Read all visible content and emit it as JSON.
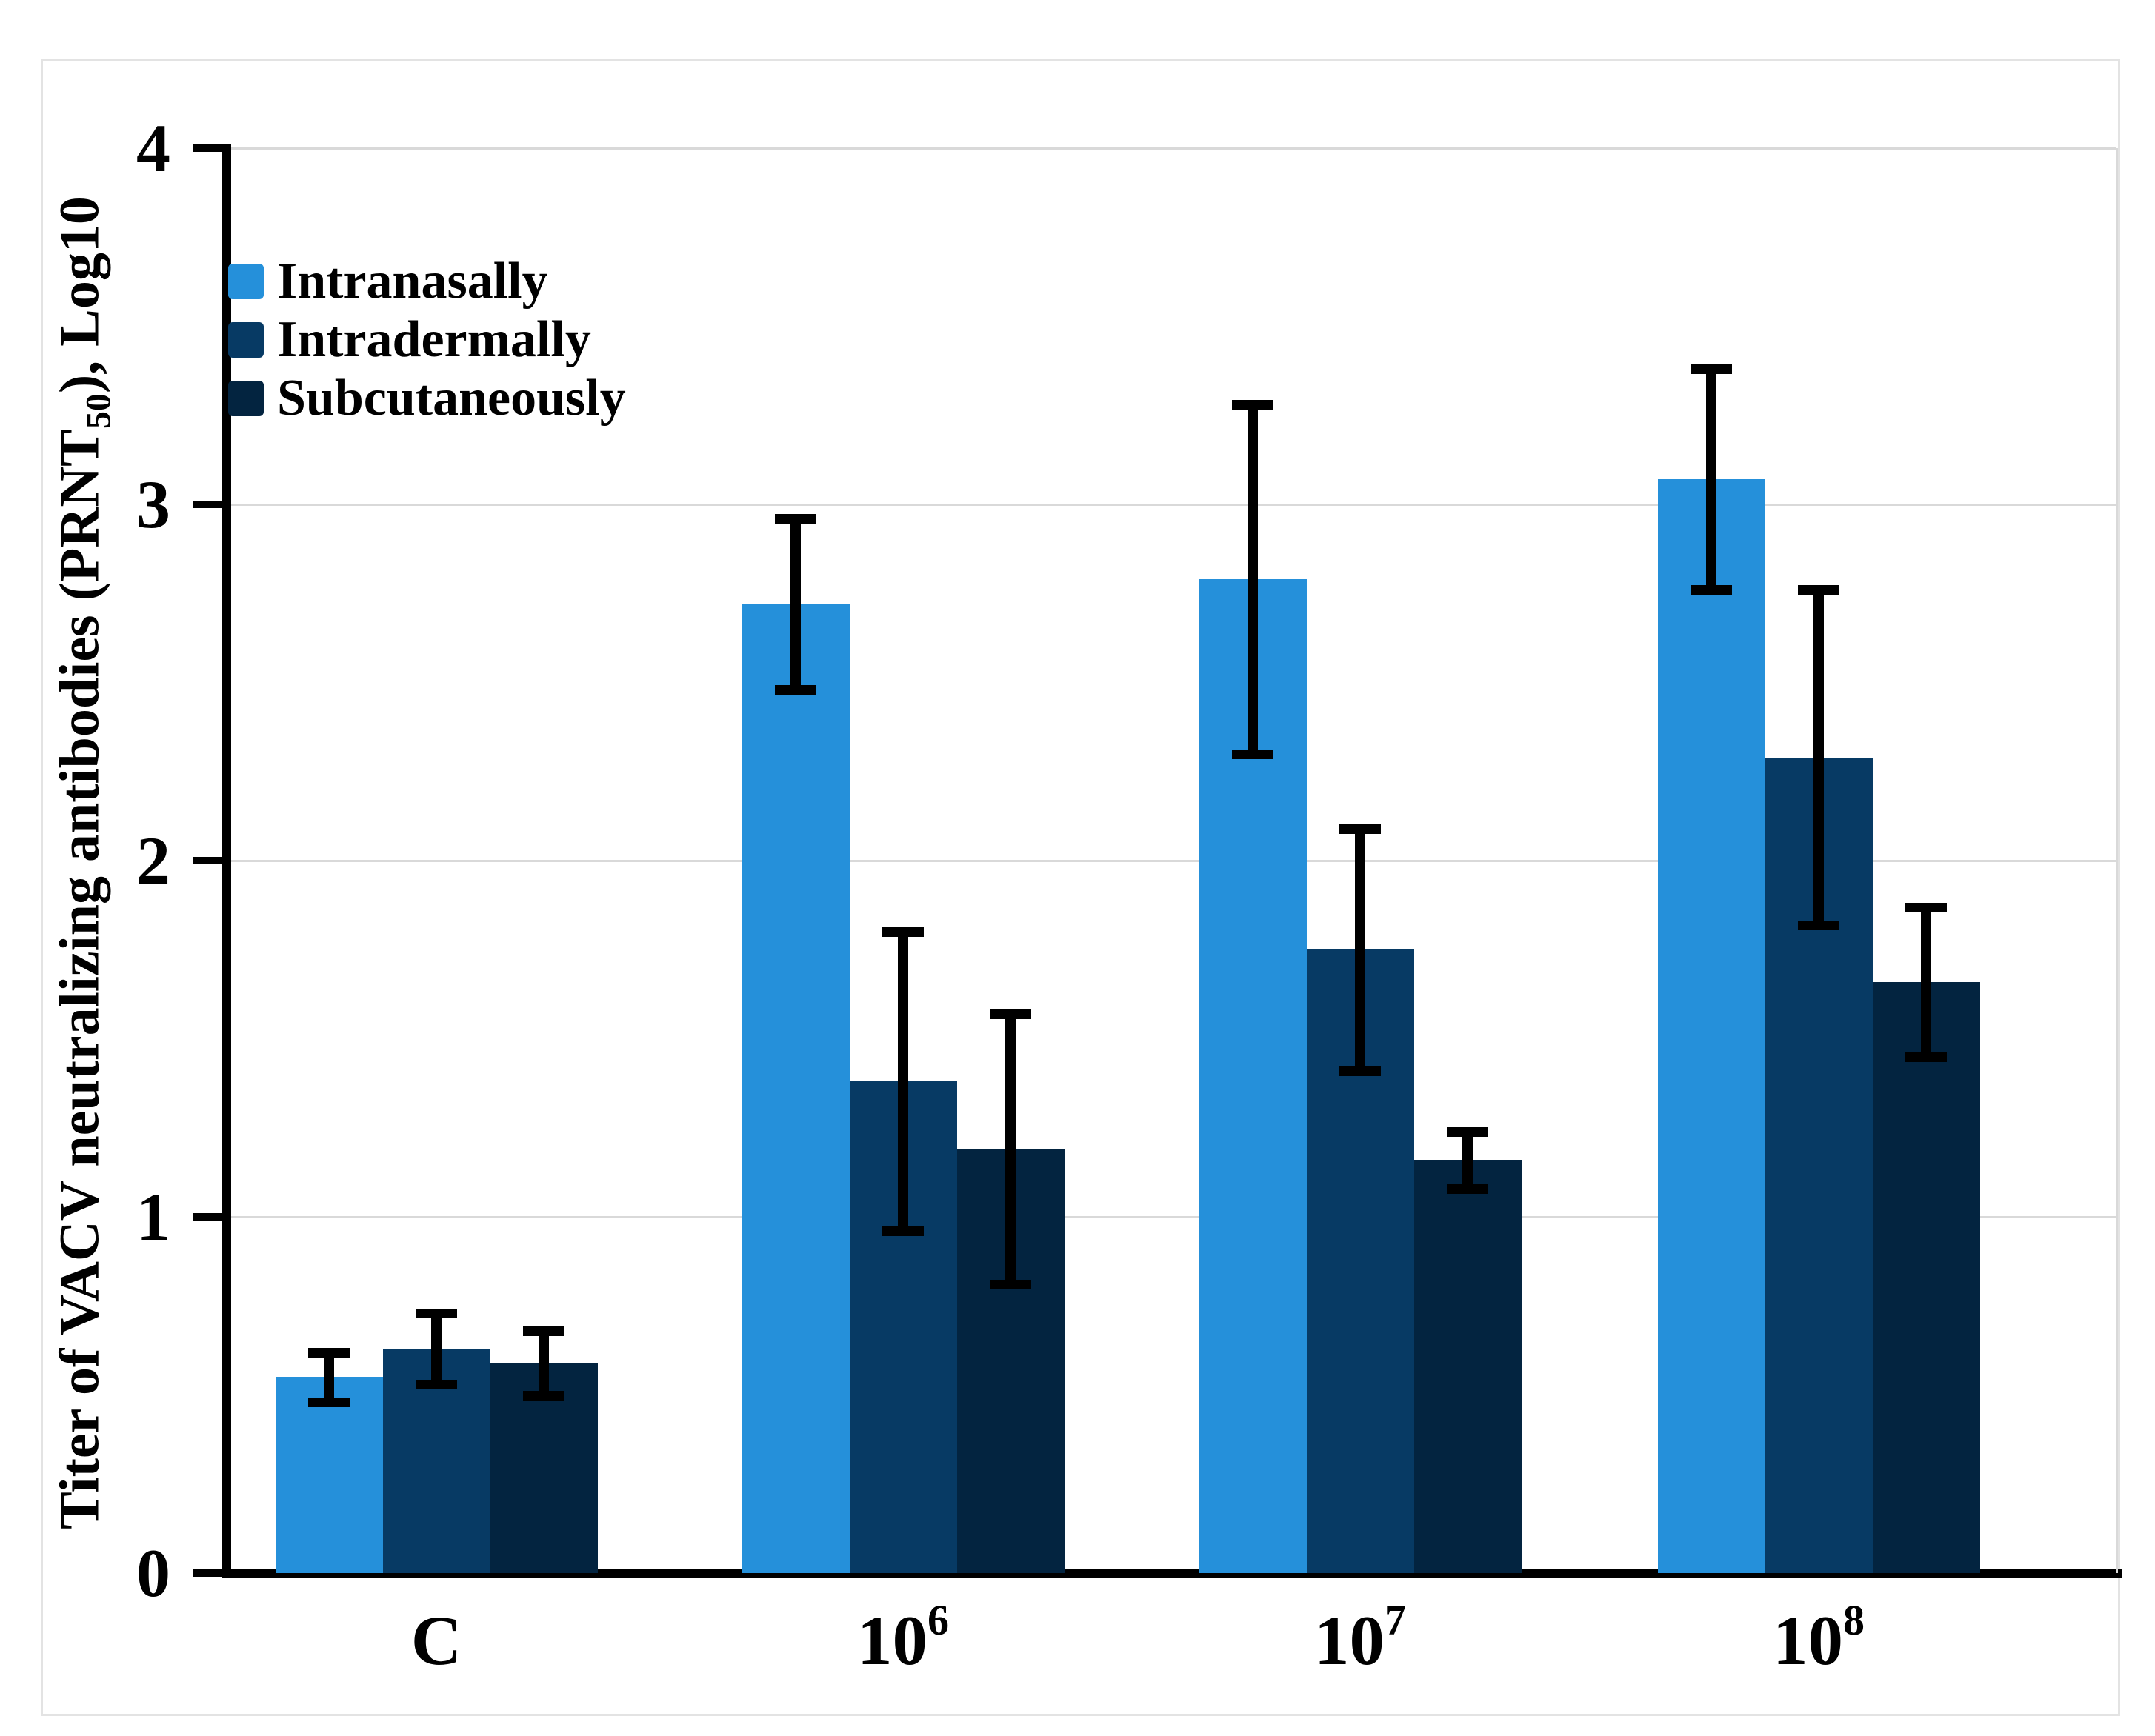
{
  "figure": {
    "background": "#ffffff",
    "border_color": "#e3e3e3"
  },
  "chart_data": {
    "type": "bar",
    "title": "",
    "ylabel": {
      "prefix": "Titer of VACV neutralizing antibodies (PRNT",
      "sub": "50",
      "suffix": "), Log10"
    },
    "xlabel": "",
    "ylim": [
      0,
      4
    ],
    "yticks": [
      "0",
      "1",
      "2",
      "3",
      "4"
    ],
    "grid": "horizontal",
    "gridline_color": "#d9d9d9",
    "axis_color": "#000000",
    "error_bar_color": "#000000",
    "legend_position": "top-left",
    "categories": [
      {
        "base": "C",
        "sup": ""
      },
      {
        "base": "10",
        "sup": "6"
      },
      {
        "base": "10",
        "sup": "7"
      },
      {
        "base": "10",
        "sup": "8"
      }
    ],
    "series": [
      {
        "name": "Intranasally",
        "color": "#2590da",
        "values": [
          0.55,
          2.72,
          2.79,
          3.07
        ],
        "errors": [
          0.07,
          0.24,
          0.49,
          0.31
        ]
      },
      {
        "name": "Intradermally",
        "color": "#073a64",
        "values": [
          0.63,
          1.38,
          1.75,
          2.29
        ],
        "errors": [
          0.1,
          0.42,
          0.34,
          0.47
        ]
      },
      {
        "name": "Subcutaneously",
        "color": "#032440",
        "values": [
          0.59,
          1.19,
          1.16,
          1.66
        ],
        "errors": [
          0.09,
          0.38,
          0.08,
          0.21
        ]
      }
    ]
  }
}
